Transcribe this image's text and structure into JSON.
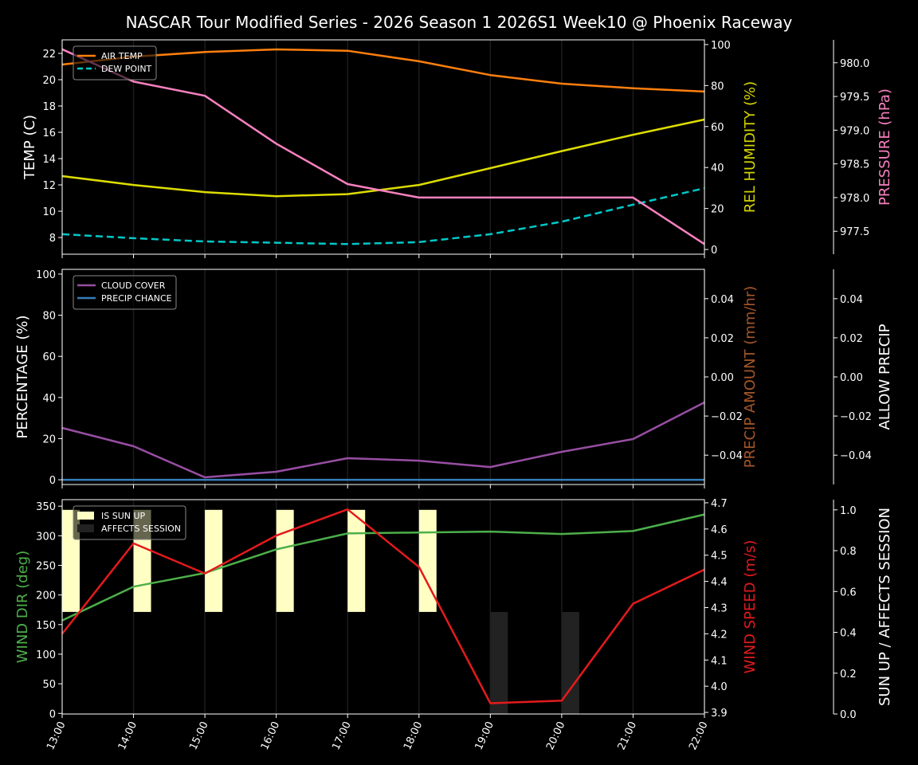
{
  "title": "NASCAR Tour Modified Series - 2026 Season 1 2026S1 Week10 @ Phoenix Raceway",
  "chart_data": [
    {
      "type": "line",
      "x": [
        "13:00",
        "14:00",
        "15:00",
        "16:00",
        "17:00",
        "18:00",
        "19:00",
        "20:00",
        "21:00",
        "22:00"
      ],
      "grid": "vertical",
      "legend_placement": "top-left",
      "axes": {
        "left": {
          "label": "TEMP (C)",
          "color": "#ffffff",
          "ylim": [
            6.73,
            23.03
          ],
          "ticks": [
            8,
            10,
            12,
            14,
            16,
            18,
            20,
            22
          ],
          "tick_labels": [
            "8",
            "10",
            "12",
            "14",
            "16",
            "18",
            "20",
            "22"
          ]
        },
        "right": {
          "label": "REL HUMIDITY (%)",
          "color": "#d4d400",
          "ylim": [
            -2.3,
            102.3
          ],
          "ticks": [
            0,
            20,
            40,
            60,
            80,
            100
          ],
          "tick_labels": [
            "0",
            "20",
            "40",
            "60",
            "80",
            "100"
          ]
        },
        "right2": {
          "label": "PRESSURE (hPa)",
          "color": "#f781bf",
          "ylim": [
            977.16,
            980.34
          ],
          "ticks": [
            977.5,
            978.0,
            978.5,
            979.0,
            979.5,
            980.0
          ],
          "tick_labels": [
            "977.5",
            "978.0",
            "978.5",
            "979.0",
            "979.5",
            "980.0"
          ]
        }
      },
      "series": [
        {
          "name": "AIR TEMP",
          "axis": "left",
          "color": "#ff7f0e",
          "dash": false,
          "legend": true,
          "values": [
            21.15,
            21.75,
            22.1,
            22.3,
            22.2,
            21.4,
            20.35,
            19.7,
            19.35,
            19.1
          ]
        },
        {
          "name": "DEW POINT",
          "axis": "left",
          "color": "#00c8c8",
          "dash": true,
          "legend": true,
          "values": [
            8.25,
            7.95,
            7.7,
            7.6,
            7.5,
            7.65,
            8.25,
            9.2,
            10.5,
            11.75
          ]
        },
        {
          "axis": "right",
          "color": "#dddd00",
          "dash": false,
          "legend": false,
          "values": [
            35.8,
            31.5,
            28,
            26,
            27,
            31.5,
            39.7,
            48,
            56,
            63.4
          ]
        },
        {
          "axis": "right2",
          "color": "#f781bf",
          "dash": false,
          "legend": false,
          "values": [
            980.2,
            979.72,
            979.51,
            978.8,
            978.2,
            978.0,
            978.0,
            978.0,
            978.0,
            977.31
          ]
        }
      ]
    },
    {
      "type": "line",
      "x": [
        "13:00",
        "14:00",
        "15:00",
        "16:00",
        "17:00",
        "18:00",
        "19:00",
        "20:00",
        "21:00",
        "22:00"
      ],
      "grid": "vertical",
      "legend_placement": "top-left",
      "axes": {
        "left": {
          "label": "PERCENTAGE (%)",
          "color": "#ffffff",
          "ylim": [
            -2.3,
            102.3
          ],
          "ticks": [
            0,
            20,
            40,
            60,
            80,
            100
          ],
          "tick_labels": [
            "0",
            "20",
            "40",
            "60",
            "80",
            "100"
          ]
        },
        "right": {
          "label": "PRECIP AMOUNT (mm/hr)",
          "color": "#a65628",
          "ylim": [
            -0.055,
            0.055
          ],
          "ticks": [
            -0.04,
            -0.02,
            0,
            0.02,
            0.04
          ],
          "tick_labels": [
            "−0.04",
            "−0.02",
            "0.00",
            "0.02",
            "0.04"
          ]
        },
        "right2": {
          "label": "ALLOW PRECIP",
          "color": "#ffffff",
          "ylim": [
            -0.055,
            0.055
          ],
          "ticks": [
            -0.04,
            -0.02,
            0,
            0.02,
            0.04
          ],
          "tick_labels": [
            "−0.04",
            "−0.02",
            "0.00",
            "0.02",
            "0.04"
          ]
        }
      },
      "series": [
        {
          "name": "CLOUD COVER",
          "axis": "left",
          "color": "#984ea3",
          "dash": false,
          "legend": true,
          "values": [
            25.2,
            16.3,
            1.2,
            3.9,
            10.5,
            9.3,
            6.2,
            13.6,
            19.8,
            37.6
          ]
        },
        {
          "name": "PRECIP CHANCE",
          "axis": "left",
          "color": "#377eb8",
          "dash": false,
          "legend": true,
          "values": [
            0,
            0,
            0,
            0,
            0,
            0,
            0,
            0,
            0,
            0
          ]
        }
      ]
    },
    {
      "type": "line",
      "x": [
        "13:00",
        "14:00",
        "15:00",
        "16:00",
        "17:00",
        "18:00",
        "19:00",
        "20:00",
        "21:00",
        "22:00"
      ],
      "grid": "vertical",
      "legend_placement": "top-left",
      "axes": {
        "left": {
          "label": "WIND DIR (deg)",
          "color": "#4daf4a",
          "ylim": [
            -1,
            361
          ],
          "ticks": [
            0,
            50,
            100,
            150,
            200,
            250,
            300,
            350
          ],
          "tick_labels": [
            "0",
            "50",
            "100",
            "150",
            "200",
            "250",
            "300",
            "350"
          ]
        },
        "right": {
          "label": "WIND SPEED (m/s)",
          "color": "#e41a1c",
          "ylim": [
            3.894,
            4.712
          ],
          "ticks": [
            3.9,
            4.0,
            4.1,
            4.2,
            4.3,
            4.4,
            4.5,
            4.6,
            4.7
          ],
          "tick_labels": [
            "3.9",
            "4.0",
            "4.1",
            "4.2",
            "4.3",
            "4.4",
            "4.5",
            "4.6",
            "4.7"
          ]
        },
        "right2": {
          "label": "SUN UP / AFFECTS SESSION",
          "color": "#ffffff",
          "ylim": [
            0,
            1.05
          ],
          "ticks": [
            0,
            0.2,
            0.4,
            0.6,
            0.8,
            1.0
          ],
          "tick_labels": [
            "0.0",
            "0.2",
            "0.4",
            "0.6",
            "0.8",
            "1.0"
          ]
        }
      },
      "bars": [
        {
          "name": "IS SUN UP",
          "axis": "right2",
          "color": "#ffffc4",
          "base": 0.5,
          "values": [
            1,
            1,
            1,
            1,
            1,
            1,
            0,
            0,
            0,
            0
          ]
        },
        {
          "name": "AFFECTS SESSION",
          "axis": "right2",
          "color": "#222222",
          "base": 0,
          "values": [
            0,
            0,
            0,
            0,
            0,
            0,
            1,
            1,
            0,
            0
          ]
        }
      ],
      "series": [
        {
          "axis": "left",
          "color": "#4daf4a",
          "dash": false,
          "legend": false,
          "values": [
            157,
            214,
            237,
            277,
            304,
            305.5,
            307,
            303,
            308,
            336
          ]
        },
        {
          "axis": "right",
          "color": "#e41a1c",
          "dash": false,
          "legend": false,
          "values": [
            4.2,
            4.545,
            4.43,
            4.575,
            4.675,
            4.455,
            3.935,
            3.945,
            4.315,
            4.445
          ]
        }
      ]
    }
  ]
}
